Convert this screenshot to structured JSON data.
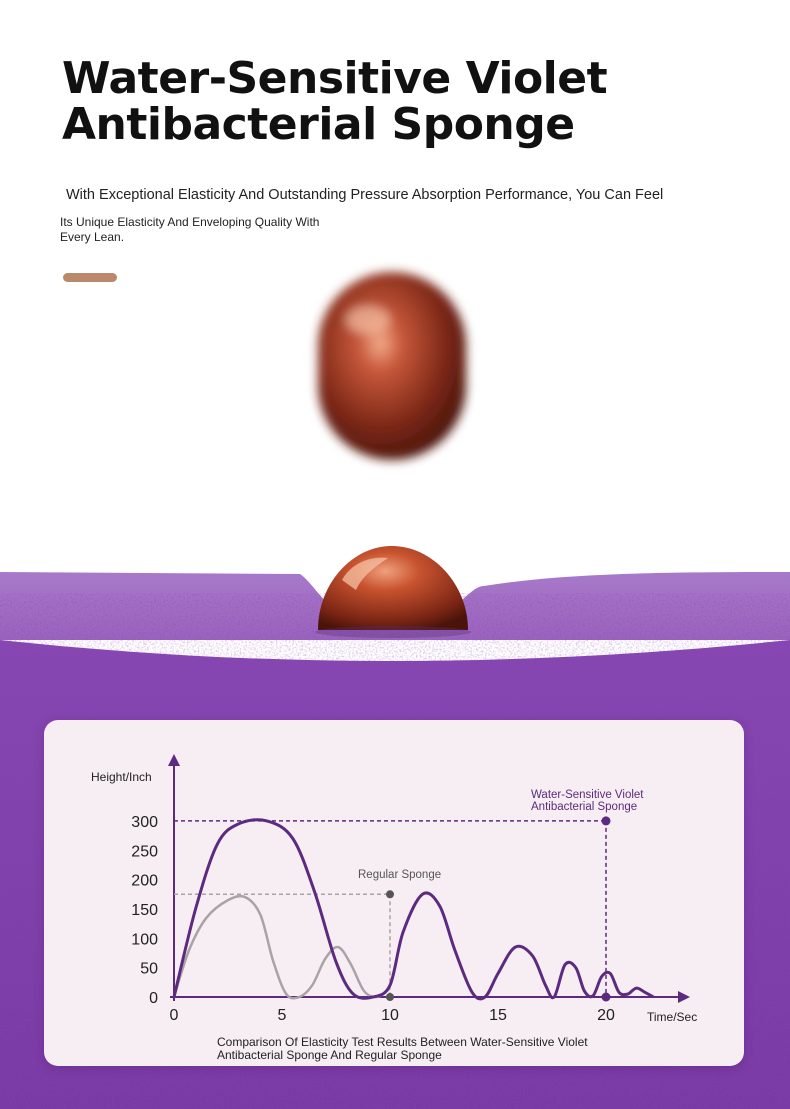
{
  "header": {
    "title_line1": "Water-Sensitive Violet",
    "title_line2": "Antibacterial Sponge",
    "subtitle": "With Exceptional Elasticity And Outstanding Pressure Absorption Performance, You Can Feel",
    "description": "Its Unique Elasticity And Enveloping Quality With Every Lean."
  },
  "colors": {
    "accent": "#b8896a",
    "violet_line": "#5c2a7e",
    "regular_line": "#a8a3a6",
    "foam": "#8a4cb4",
    "ball": "#b5482e"
  },
  "chart_data": {
    "type": "line",
    "ylabel": "Height/Inch",
    "xlabel": "Time/Sec",
    "xlim": [
      0,
      20
    ],
    "ylim": [
      0,
      300
    ],
    "x_ticks": [
      0,
      5,
      10,
      15,
      20
    ],
    "y_ticks": [
      0,
      50,
      100,
      150,
      200,
      250,
      300
    ],
    "grid": false,
    "caption": "Comparison Of Elasticity Test Results Between Water-Sensitive Violet Antibacterial Sponge And Regular Sponge",
    "series": [
      {
        "name_line1": "Water-Sensitive Violet",
        "name_line2": "Antibacterial Sponge",
        "color": "#5c2a7e",
        "end_x": 20,
        "end_y": 300,
        "points": [
          [
            0,
            0
          ],
          [
            1,
            150
          ],
          [
            2,
            260
          ],
          [
            3,
            295
          ],
          [
            4.3,
            300
          ],
          [
            5.5,
            270
          ],
          [
            6.5,
            180
          ],
          [
            7.5,
            60
          ],
          [
            8.3,
            5
          ],
          [
            9.2,
            0
          ],
          [
            10,
            20
          ],
          [
            10.6,
            110
          ],
          [
            11.5,
            175
          ],
          [
            12.3,
            155
          ],
          [
            13,
            80
          ],
          [
            13.8,
            8
          ],
          [
            14.4,
            0
          ],
          [
            15,
            40
          ],
          [
            15.8,
            85
          ],
          [
            16.6,
            70
          ],
          [
            17.2,
            20
          ],
          [
            17.6,
            0
          ],
          [
            18.1,
            55
          ],
          [
            18.6,
            50
          ],
          [
            19,
            10
          ],
          [
            19.4,
            2
          ],
          [
            19.8,
            35
          ],
          [
            20.2,
            40
          ],
          [
            20.6,
            8
          ],
          [
            21,
            5
          ],
          [
            21.4,
            15
          ],
          [
            21.8,
            8
          ],
          [
            22.2,
            0
          ]
        ]
      },
      {
        "name": "Regular Sponge",
        "color": "#a8a3a6",
        "end_x": 10,
        "end_y": 175,
        "points": [
          [
            0,
            0
          ],
          [
            0.7,
            80
          ],
          [
            1.5,
            135
          ],
          [
            2.5,
            165
          ],
          [
            3.3,
            170
          ],
          [
            4,
            140
          ],
          [
            4.6,
            60
          ],
          [
            5.2,
            5
          ],
          [
            5.8,
            0
          ],
          [
            6.4,
            20
          ],
          [
            7,
            65
          ],
          [
            7.6,
            85
          ],
          [
            8.2,
            55
          ],
          [
            8.8,
            10
          ],
          [
            9.4,
            0
          ],
          [
            10,
            15
          ]
        ]
      }
    ]
  }
}
